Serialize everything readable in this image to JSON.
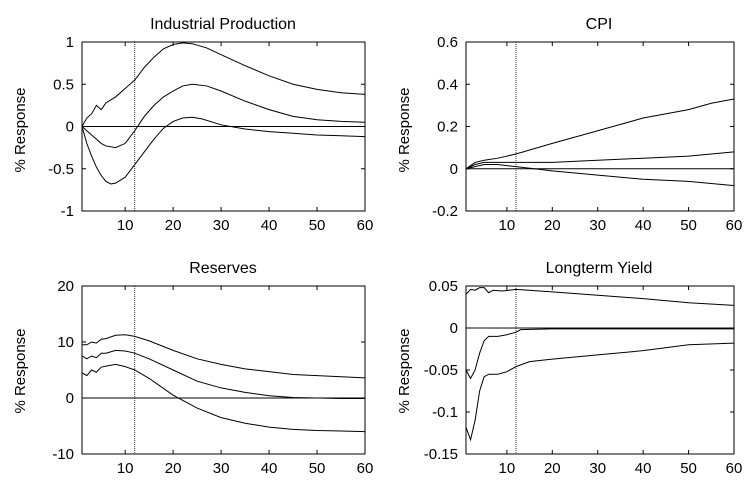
{
  "chart_data": [
    {
      "type": "line",
      "title": "Industrial Production",
      "ylabel": "% Response",
      "xlim": [
        1,
        60
      ],
      "ylim": [
        -1,
        1
      ],
      "xticks": [
        10,
        20,
        30,
        40,
        50,
        60
      ],
      "yticks": [
        -1,
        -0.5,
        0,
        0.5,
        1
      ],
      "vline": 12,
      "hline": 0,
      "series": [
        {
          "points": [
            [
              1,
              0
            ],
            [
              2,
              0.1
            ],
            [
              3,
              0.15
            ],
            [
              4,
              0.25
            ],
            [
              5,
              0.2
            ],
            [
              6,
              0.28
            ],
            [
              8,
              0.35
            ],
            [
              10,
              0.45
            ],
            [
              12,
              0.55
            ],
            [
              14,
              0.7
            ],
            [
              16,
              0.82
            ],
            [
              18,
              0.92
            ],
            [
              20,
              0.97
            ],
            [
              22,
              0.99
            ],
            [
              24,
              0.98
            ],
            [
              27,
              0.93
            ],
            [
              30,
              0.85
            ],
            [
              35,
              0.72
            ],
            [
              40,
              0.6
            ],
            [
              45,
              0.5
            ],
            [
              50,
              0.44
            ],
            [
              55,
              0.4
            ],
            [
              60,
              0.38
            ]
          ]
        },
        {
          "points": [
            [
              1,
              0
            ],
            [
              2,
              -0.05
            ],
            [
              3,
              -0.1
            ],
            [
              4,
              -0.15
            ],
            [
              5,
              -0.2
            ],
            [
              6,
              -0.23
            ],
            [
              8,
              -0.25
            ],
            [
              10,
              -0.2
            ],
            [
              12,
              -0.05
            ],
            [
              14,
              0.12
            ],
            [
              16,
              0.25
            ],
            [
              18,
              0.35
            ],
            [
              20,
              0.42
            ],
            [
              22,
              0.48
            ],
            [
              24,
              0.5
            ],
            [
              27,
              0.48
            ],
            [
              30,
              0.42
            ],
            [
              35,
              0.3
            ],
            [
              40,
              0.2
            ],
            [
              45,
              0.12
            ],
            [
              50,
              0.08
            ],
            [
              55,
              0.06
            ],
            [
              60,
              0.05
            ]
          ]
        },
        {
          "points": [
            [
              1,
              0
            ],
            [
              2,
              -0.2
            ],
            [
              3,
              -0.35
            ],
            [
              4,
              -0.48
            ],
            [
              5,
              -0.58
            ],
            [
              6,
              -0.65
            ],
            [
              7,
              -0.68
            ],
            [
              8,
              -0.67
            ],
            [
              10,
              -0.6
            ],
            [
              12,
              -0.45
            ],
            [
              14,
              -0.3
            ],
            [
              16,
              -0.15
            ],
            [
              18,
              -0.02
            ],
            [
              20,
              0.06
            ],
            [
              22,
              0.1
            ],
            [
              24,
              0.11
            ],
            [
              26,
              0.09
            ],
            [
              30,
              0.02
            ],
            [
              35,
              -0.03
            ],
            [
              40,
              -0.06
            ],
            [
              45,
              -0.08
            ],
            [
              50,
              -0.1
            ],
            [
              55,
              -0.11
            ],
            [
              60,
              -0.12
            ]
          ]
        }
      ]
    },
    {
      "type": "line",
      "title": "CPI",
      "ylabel": "% Response",
      "xlim": [
        1,
        60
      ],
      "ylim": [
        -0.2,
        0.6
      ],
      "xticks": [
        10,
        20,
        30,
        40,
        50,
        60
      ],
      "yticks": [
        -0.2,
        0,
        0.2,
        0.4,
        0.6
      ],
      "vline": 12,
      "hline": 0,
      "series": [
        {
          "points": [
            [
              1,
              0
            ],
            [
              3,
              0.03
            ],
            [
              5,
              0.04
            ],
            [
              8,
              0.05
            ],
            [
              12,
              0.07
            ],
            [
              20,
              0.12
            ],
            [
              30,
              0.18
            ],
            [
              40,
              0.24
            ],
            [
              50,
              0.28
            ],
            [
              55,
              0.31
            ],
            [
              60,
              0.33
            ]
          ]
        },
        {
          "points": [
            [
              1,
              0
            ],
            [
              3,
              0.02
            ],
            [
              5,
              0.03
            ],
            [
              8,
              0.03
            ],
            [
              12,
              0.03
            ],
            [
              20,
              0.03
            ],
            [
              30,
              0.04
            ],
            [
              40,
              0.05
            ],
            [
              50,
              0.06
            ],
            [
              55,
              0.07
            ],
            [
              60,
              0.08
            ]
          ]
        },
        {
          "points": [
            [
              1,
              0
            ],
            [
              3,
              0.01
            ],
            [
              5,
              0.02
            ],
            [
              8,
              0.02
            ],
            [
              12,
              0.01
            ],
            [
              20,
              -0.01
            ],
            [
              30,
              -0.03
            ],
            [
              40,
              -0.05
            ],
            [
              50,
              -0.06
            ],
            [
              60,
              -0.08
            ]
          ]
        }
      ]
    },
    {
      "type": "line",
      "title": "Reserves",
      "ylabel": "% Response",
      "xlim": [
        1,
        60
      ],
      "ylim": [
        -10,
        20
      ],
      "xticks": [
        10,
        20,
        30,
        40,
        50,
        60
      ],
      "yticks": [
        -10,
        0,
        10,
        20
      ],
      "vline": 12,
      "hline": 0,
      "series": [
        {
          "points": [
            [
              1,
              9.5
            ],
            [
              2,
              9.5
            ],
            [
              3,
              10
            ],
            [
              4,
              9.8
            ],
            [
              5,
              10.5
            ],
            [
              6,
              10.6
            ],
            [
              8,
              11.2
            ],
            [
              10,
              11.3
            ],
            [
              12,
              11
            ],
            [
              15,
              10.2
            ],
            [
              20,
              8.5
            ],
            [
              25,
              7
            ],
            [
              30,
              6
            ],
            [
              35,
              5.2
            ],
            [
              40,
              4.7
            ],
            [
              45,
              4.2
            ],
            [
              50,
              4
            ],
            [
              55,
              3.8
            ],
            [
              60,
              3.6
            ]
          ]
        },
        {
          "points": [
            [
              1,
              7.5
            ],
            [
              2,
              7
            ],
            [
              3,
              7.5
            ],
            [
              4,
              7.2
            ],
            [
              5,
              8
            ],
            [
              6,
              8
            ],
            [
              8,
              8.5
            ],
            [
              10,
              8.4
            ],
            [
              12,
              8
            ],
            [
              15,
              7
            ],
            [
              20,
              5
            ],
            [
              25,
              3
            ],
            [
              30,
              1.8
            ],
            [
              35,
              1
            ],
            [
              40,
              0.4
            ],
            [
              45,
              0.1
            ],
            [
              50,
              0
            ],
            [
              55,
              -0.1
            ],
            [
              60,
              -0.1
            ]
          ]
        },
        {
          "points": [
            [
              1,
              4.5
            ],
            [
              2,
              4
            ],
            [
              3,
              5
            ],
            [
              4,
              4.6
            ],
            [
              5,
              5.5
            ],
            [
              6,
              5.7
            ],
            [
              8,
              6
            ],
            [
              10,
              5.6
            ],
            [
              12,
              5
            ],
            [
              15,
              3.5
            ],
            [
              20,
              0.5
            ],
            [
              25,
              -1.8
            ],
            [
              30,
              -3.5
            ],
            [
              35,
              -4.5
            ],
            [
              40,
              -5.2
            ],
            [
              45,
              -5.6
            ],
            [
              50,
              -5.8
            ],
            [
              55,
              -5.9
            ],
            [
              60,
              -6
            ]
          ]
        }
      ]
    },
    {
      "type": "line",
      "title": "Longterm Yield",
      "ylabel": "% Response",
      "xlim": [
        1,
        60
      ],
      "ylim": [
        -0.15,
        0.05
      ],
      "xticks": [
        10,
        20,
        30,
        40,
        50,
        60
      ],
      "yticks": [
        -0.15,
        -0.1,
        -0.05,
        0,
        0.05
      ],
      "vline": 12,
      "hline": 0,
      "series": [
        {
          "points": [
            [
              1,
              0.04
            ],
            [
              2,
              0.046
            ],
            [
              3,
              0.045
            ],
            [
              4,
              0.048
            ],
            [
              5,
              0.048
            ],
            [
              6,
              0.042
            ],
            [
              7,
              0.045
            ],
            [
              9,
              0.044
            ],
            [
              12,
              0.046
            ],
            [
              20,
              0.043
            ],
            [
              30,
              0.039
            ],
            [
              40,
              0.035
            ],
            [
              50,
              0.03
            ],
            [
              60,
              0.027
            ]
          ]
        },
        {
          "points": [
            [
              1,
              -0.05
            ],
            [
              2,
              -0.06
            ],
            [
              3,
              -0.05
            ],
            [
              4,
              -0.03
            ],
            [
              5,
              -0.015
            ],
            [
              6,
              -0.01
            ],
            [
              8,
              -0.01
            ],
            [
              10,
              -0.008
            ],
            [
              12,
              -0.005
            ],
            [
              13,
              -0.002
            ],
            [
              20,
              -0.001
            ],
            [
              30,
              -0.001
            ],
            [
              40,
              -0.001
            ],
            [
              60,
              -0.001
            ]
          ]
        },
        {
          "points": [
            [
              1,
              -0.118
            ],
            [
              2,
              -0.133
            ],
            [
              3,
              -0.11
            ],
            [
              4,
              -0.075
            ],
            [
              5,
              -0.058
            ],
            [
              6,
              -0.055
            ],
            [
              8,
              -0.055
            ],
            [
              10,
              -0.052
            ],
            [
              12,
              -0.046
            ],
            [
              15,
              -0.04
            ],
            [
              20,
              -0.037
            ],
            [
              30,
              -0.032
            ],
            [
              40,
              -0.027
            ],
            [
              50,
              -0.02
            ],
            [
              60,
              -0.018
            ]
          ]
        }
      ]
    }
  ]
}
